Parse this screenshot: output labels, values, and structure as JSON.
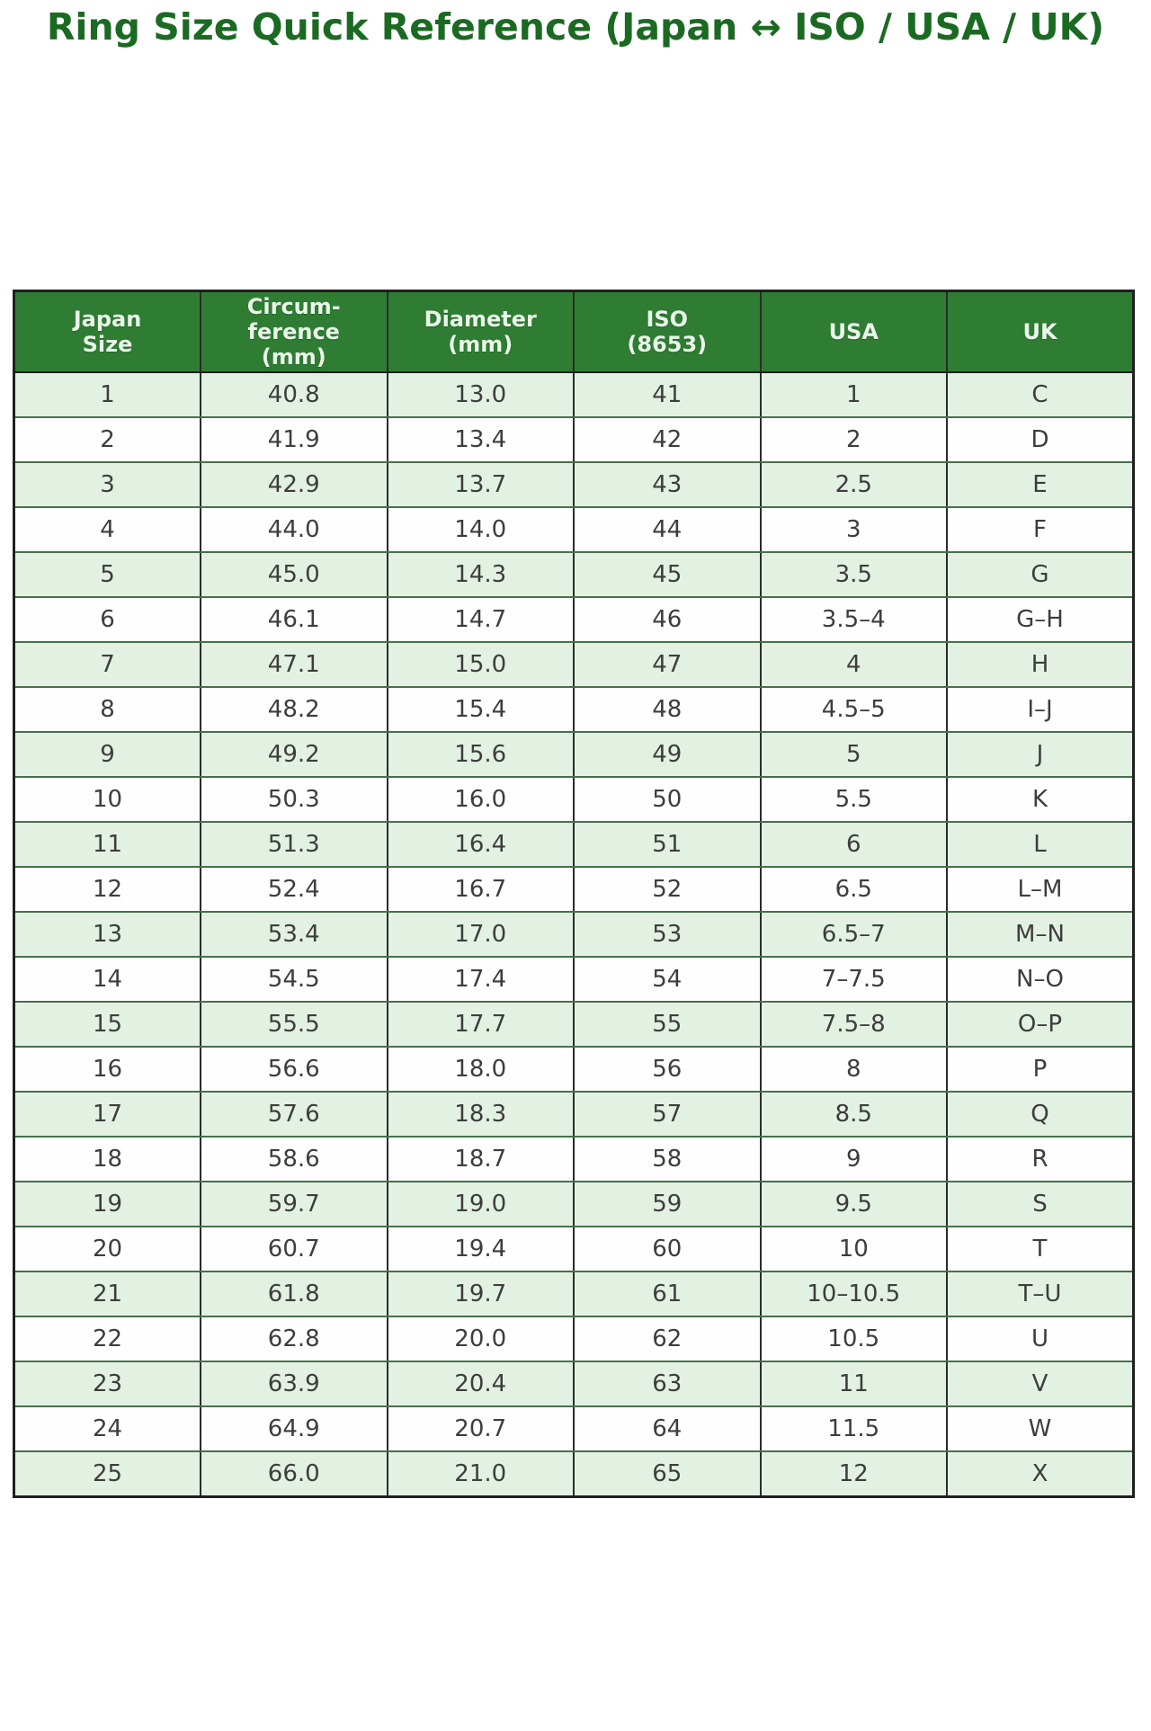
{
  "title": "Ring Size Quick Reference (Japan ↔ ISO / USA / UK)",
  "chart_data": {
    "type": "table",
    "title": "Ring Size Quick Reference (Japan ↔ ISO / USA / UK)",
    "columns": [
      "Japan\nSize",
      "Circum-\nference\n(mm)",
      "Diameter\n(mm)",
      "ISO\n(8653)",
      "USA",
      "UK"
    ],
    "rows": [
      [
        "1",
        "40.8",
        "13.0",
        "41",
        "1",
        "C"
      ],
      [
        "2",
        "41.9",
        "13.4",
        "42",
        "2",
        "D"
      ],
      [
        "3",
        "42.9",
        "13.7",
        "43",
        "2.5",
        "E"
      ],
      [
        "4",
        "44.0",
        "14.0",
        "44",
        "3",
        "F"
      ],
      [
        "5",
        "45.0",
        "14.3",
        "45",
        "3.5",
        "G"
      ],
      [
        "6",
        "46.1",
        "14.7",
        "46",
        "3.5–4",
        "G–H"
      ],
      [
        "7",
        "47.1",
        "15.0",
        "47",
        "4",
        "H"
      ],
      [
        "8",
        "48.2",
        "15.4",
        "48",
        "4.5–5",
        "I–J"
      ],
      [
        "9",
        "49.2",
        "15.6",
        "49",
        "5",
        "J"
      ],
      [
        "10",
        "50.3",
        "16.0",
        "50",
        "5.5",
        "K"
      ],
      [
        "11",
        "51.3",
        "16.4",
        "51",
        "6",
        "L"
      ],
      [
        "12",
        "52.4",
        "16.7",
        "52",
        "6.5",
        "L–M"
      ],
      [
        "13",
        "53.4",
        "17.0",
        "53",
        "6.5–7",
        "M–N"
      ],
      [
        "14",
        "54.5",
        "17.4",
        "54",
        "7–7.5",
        "N–O"
      ],
      [
        "15",
        "55.5",
        "17.7",
        "55",
        "7.5–8",
        "O–P"
      ],
      [
        "16",
        "56.6",
        "18.0",
        "56",
        "8",
        "P"
      ],
      [
        "17",
        "57.6",
        "18.3",
        "57",
        "8.5",
        "Q"
      ],
      [
        "18",
        "58.6",
        "18.7",
        "58",
        "9",
        "R"
      ],
      [
        "19",
        "59.7",
        "19.0",
        "59",
        "9.5",
        "S"
      ],
      [
        "20",
        "60.7",
        "19.4",
        "60",
        "10",
        "T"
      ],
      [
        "21",
        "61.8",
        "19.7",
        "61",
        "10–10.5",
        "T–U"
      ],
      [
        "22",
        "62.8",
        "20.0",
        "62",
        "10.5",
        "U"
      ],
      [
        "23",
        "63.9",
        "20.4",
        "63",
        "11",
        "V"
      ],
      [
        "24",
        "64.9",
        "20.7",
        "64",
        "11.5",
        "W"
      ],
      [
        "25",
        "66.0",
        "21.0",
        "65",
        "12",
        "X"
      ]
    ]
  },
  "colors": {
    "title": "#1b6a22",
    "header_bg": "#2e7d33",
    "header_text": "#eaf6ea",
    "row_bg": "#fdfefd",
    "row_alt_bg": "#e3f1e3",
    "cell_text": "#3d3d3d",
    "grid_vertical": "#2b2b2b",
    "grid_horizontal": "#45714a"
  }
}
